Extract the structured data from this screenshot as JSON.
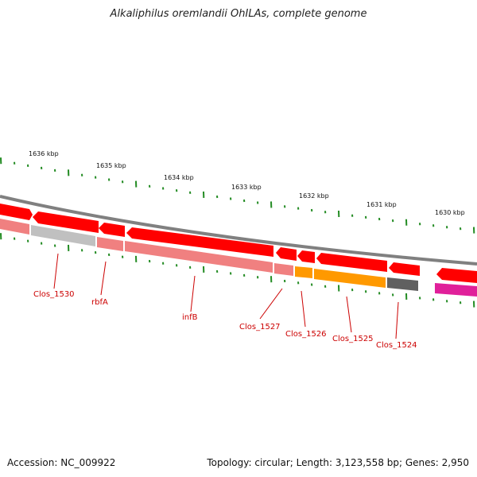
{
  "title": "Alkaliphilus oremlandii OhILAs, complete genome",
  "footer": {
    "accession": "Accession: NC_009922",
    "summary": "Topology: circular; Length: 3,123,558 bp; Genes: 2,950"
  },
  "scale_labels": [
    "1636 kbp",
    "1635 kbp",
    "1634 kbp",
    "1633 kbp",
    "1632 kbp",
    "1631 kbp",
    "1630 kbp"
  ],
  "gene_labels": [
    "Clos_1530",
    "rbfA",
    "infB",
    "Clos_1527",
    "Clos_1526",
    "Clos_1525",
    "Clos_1524"
  ],
  "colors": {
    "cds": "#ff0000",
    "gene_faded": "#f08080",
    "gene_grey": "#c0c0c0",
    "gene_orange": "#ff9900",
    "gene_dark": "#606060",
    "gene_magenta": "#e0209a",
    "tick": "#228b22",
    "backbone": "#808080",
    "label": "#cc0000"
  }
}
